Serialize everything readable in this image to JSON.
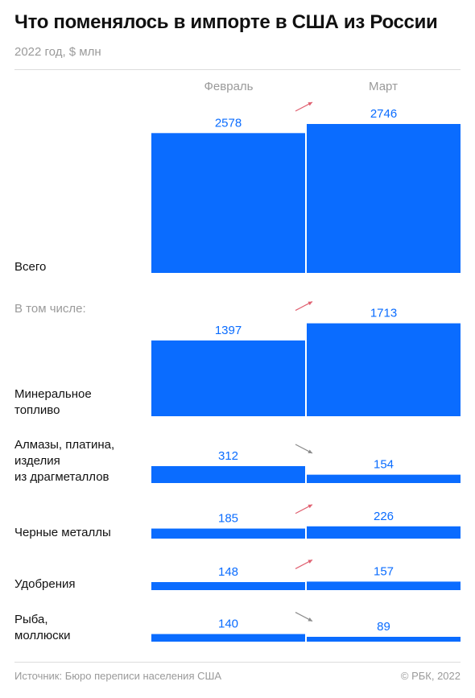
{
  "title": "Что поменялось в импорте в США из России",
  "subtitle": "2022 год, $ млн",
  "footer": {
    "source": "Источник: Бюро переписи населения США",
    "copyright": "© РБК, 2022"
  },
  "chart_data": {
    "type": "bar",
    "orientation": "vertical-paired",
    "columns": [
      "Февраль",
      "Март"
    ],
    "section_label": "В том числе:",
    "categories": [
      {
        "label": [
          "Всего"
        ],
        "values": [
          2578,
          2746
        ]
      },
      {
        "label": [
          "Минеральное",
          "топливо"
        ],
        "values": [
          1397,
          1713
        ]
      },
      {
        "label": [
          "Алмазы, платина,",
          "изделия",
          "из драгметаллов"
        ],
        "values": [
          312,
          154
        ]
      },
      {
        "label": [
          "Черные металлы"
        ],
        "values": [
          185,
          226
        ]
      },
      {
        "label": [
          "Удобрения"
        ],
        "values": [
          148,
          157
        ]
      },
      {
        "label": [
          "Рыба,",
          "моллюски"
        ],
        "values": [
          140,
          89
        ]
      }
    ],
    "colors": {
      "bar": "#0a6cff",
      "value_label": "#0a6cff",
      "arrow_up": "#e06070",
      "arrow_neutral": "#8a8a8a",
      "muted": "#9a9a9a"
    }
  }
}
